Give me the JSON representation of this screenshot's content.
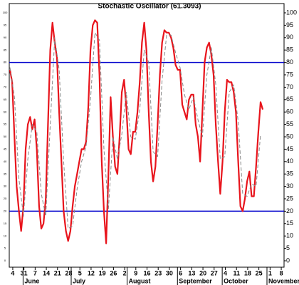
{
  "chart_data": {
    "type": "line",
    "title": "Stochastic Oscillator (61.3093)",
    "xlim": [
      0,
      24.5
    ],
    "ylim": [
      0,
      100
    ],
    "yticks": [
      0,
      5,
      10,
      15,
      20,
      25,
      30,
      35,
      40,
      45,
      50,
      55,
      60,
      65,
      70,
      75,
      80,
      85,
      90,
      95,
      100
    ],
    "xticks": [
      {
        "value": 0.25,
        "label": "4"
      },
      {
        "value": 1.25,
        "label": "31"
      },
      {
        "value": 2.25,
        "label": "7"
      },
      {
        "value": 3.25,
        "label": "14"
      },
      {
        "value": 4.25,
        "label": "21"
      },
      {
        "value": 5.25,
        "label": "28"
      },
      {
        "value": 6.25,
        "label": "5"
      },
      {
        "value": 7.25,
        "label": "12"
      },
      {
        "value": 8.25,
        "label": "19"
      },
      {
        "value": 9.25,
        "label": "26"
      },
      {
        "value": 10.25,
        "label": "2"
      },
      {
        "value": 11.25,
        "label": "9"
      },
      {
        "value": 12.25,
        "label": "16"
      },
      {
        "value": 13.25,
        "label": "23"
      },
      {
        "value": 14.25,
        "label": "30"
      },
      {
        "value": 15.25,
        "label": "6"
      },
      {
        "value": 16.25,
        "label": "13"
      },
      {
        "value": 17.25,
        "label": "20"
      },
      {
        "value": 18.25,
        "label": "27"
      },
      {
        "value": 19.25,
        "label": "4"
      },
      {
        "value": 20.25,
        "label": "11"
      },
      {
        "value": 21.25,
        "label": "18"
      },
      {
        "value": 22.25,
        "label": "25"
      },
      {
        "value": 23.25,
        "label": "1"
      },
      {
        "value": 24.25,
        "label": "8"
      }
    ],
    "month_labels": [
      {
        "value": 1.3,
        "label": "June"
      },
      {
        "value": 5.6,
        "label": "July"
      },
      {
        "value": 10.6,
        "label": "August"
      },
      {
        "value": 15.1,
        "label": "September"
      },
      {
        "value": 19.1,
        "label": "October"
      },
      {
        "value": 23.1,
        "label": "November"
      }
    ],
    "reference_lines": [
      80,
      20
    ],
    "reference_color": "#0000cc",
    "series": [
      {
        "color": "#e8141c",
        "dash": false,
        "x": [
          0,
          0.2,
          0.4,
          0.6,
          0.8,
          1,
          1.2,
          1.4,
          1.6,
          1.8,
          2,
          2.2,
          2.4,
          2.6,
          2.8,
          3,
          3.2,
          3.4,
          3.6,
          3.8,
          4,
          4.2,
          4.4,
          4.6,
          4.8,
          5,
          5.2,
          5.4,
          5.6,
          5.8,
          6,
          6.2,
          6.4,
          6.6,
          6.8,
          7,
          7.2,
          7.4,
          7.6,
          7.8,
          8,
          8.2,
          8.4,
          8.6,
          8.8,
          9,
          9.2,
          9.4,
          9.6,
          9.8,
          10,
          10.2,
          10.4,
          10.6,
          10.8,
          11,
          11.2,
          11.4,
          11.6,
          11.8,
          12,
          12.2,
          12.4,
          12.6,
          12.8,
          13,
          13.2,
          13.4,
          13.6,
          13.8,
          14,
          14.2,
          14.4,
          14.6,
          14.8,
          15,
          15.2,
          15.4,
          15.6,
          15.8,
          16,
          16.2,
          16.4,
          16.6,
          16.8,
          17,
          17.2,
          17.4,
          17.6,
          17.8,
          18,
          18.2,
          18.4,
          18.6,
          18.8,
          19,
          19.2,
          19.4,
          19.6,
          19.8,
          20,
          20.2,
          20.4,
          20.6,
          20.8,
          21,
          21.2,
          21.4,
          21.6,
          21.8,
          22,
          22.2,
          22.4,
          22.6
        ],
        "values": [
          77,
          72,
          50,
          30,
          20,
          12,
          22,
          45,
          55,
          58,
          53,
          57,
          45,
          22,
          13,
          15,
          25,
          55,
          85,
          96,
          88,
          82,
          60,
          40,
          20,
          12,
          8,
          12,
          22,
          30,
          35,
          40,
          45,
          45,
          48,
          62,
          85,
          95,
          97,
          96,
          75,
          40,
          20,
          7,
          35,
          66,
          50,
          38,
          35,
          50,
          68,
          73,
          62,
          45,
          43,
          52,
          52,
          60,
          72,
          88,
          96,
          85,
          60,
          40,
          32,
          38,
          55,
          75,
          88,
          93,
          92,
          92,
          90,
          86,
          79,
          77,
          77,
          63,
          60,
          57,
          65,
          67,
          67,
          55,
          50,
          40,
          60,
          80,
          86,
          88,
          83,
          75,
          55,
          40,
          27,
          40,
          60,
          73,
          72,
          72,
          68,
          60,
          40,
          22,
          20,
          25,
          32,
          36,
          26,
          26,
          38,
          52,
          64,
          61
        ]
      },
      {
        "color": "#888888",
        "dash": true,
        "x": [
          0,
          0.4,
          0.8,
          1.2,
          1.6,
          2,
          2.4,
          2.8,
          3.2,
          3.6,
          4,
          4.4,
          4.8,
          5.2,
          5.6,
          6,
          6.4,
          6.8,
          7.2,
          7.6,
          8,
          8.4,
          8.8,
          9.2,
          9.6,
          10,
          10.4,
          10.8,
          11.2,
          11.6,
          12,
          12.4,
          12.8,
          13.2,
          13.6,
          14,
          14.4,
          14.8,
          15.2,
          15.6,
          16,
          16.4,
          16.8,
          17.2,
          17.6,
          18,
          18.4,
          18.8,
          19.2,
          19.6,
          20,
          20.4,
          20.8,
          21.2,
          21.6,
          22,
          22.4
        ],
        "values": [
          78,
          66,
          33,
          18,
          41,
          55,
          52,
          27,
          18,
          55,
          90,
          77,
          40,
          13,
          14,
          29,
          40,
          46,
          65,
          92,
          89,
          45,
          21,
          50,
          41,
          51,
          68,
          50,
          49,
          61,
          85,
          80,
          44,
          42,
          73,
          91,
          91,
          84,
          78,
          67,
          61,
          66,
          57,
          50,
          75,
          86,
          71,
          41,
          42,
          68,
          71,
          56,
          27,
          26,
          31,
          30,
          51
        ]
      }
    ]
  }
}
